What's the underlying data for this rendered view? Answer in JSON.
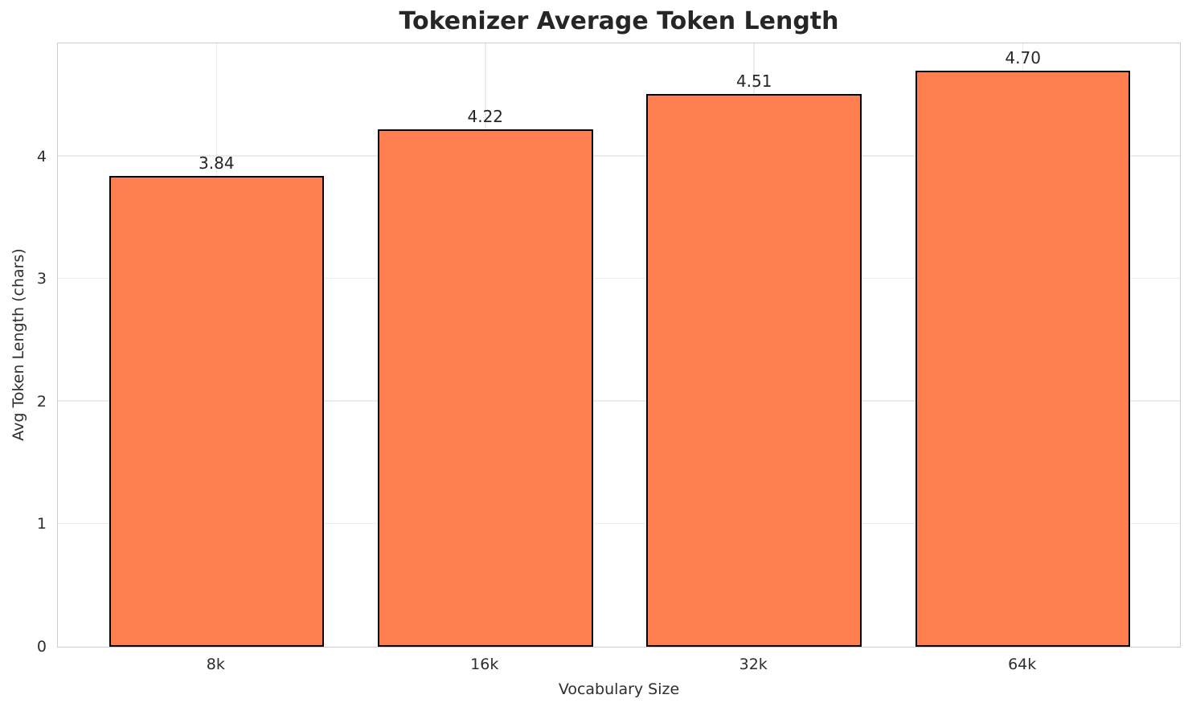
{
  "chart_data": {
    "type": "bar",
    "title": "Tokenizer Average Token Length",
    "xlabel": "Vocabulary Size",
    "ylabel": "Avg Token Length (chars)",
    "categories": [
      "8k",
      "16k",
      "32k",
      "64k"
    ],
    "values": [
      3.84,
      4.22,
      4.51,
      4.7
    ],
    "value_labels": [
      "3.84",
      "4.22",
      "4.51",
      "4.70"
    ],
    "yticks": [
      "0",
      "1",
      "2",
      "3",
      "4"
    ],
    "ytick_values": [
      0,
      1,
      2,
      3,
      4
    ],
    "ylim": [
      0,
      4.935
    ],
    "grid": true,
    "legend": "none",
    "bar_fill_color": "#FF7F50",
    "bar_edge_color": "#000000",
    "grid_color": "#ececec",
    "spine_color": "#cccccc",
    "text_color": "#262626"
  }
}
